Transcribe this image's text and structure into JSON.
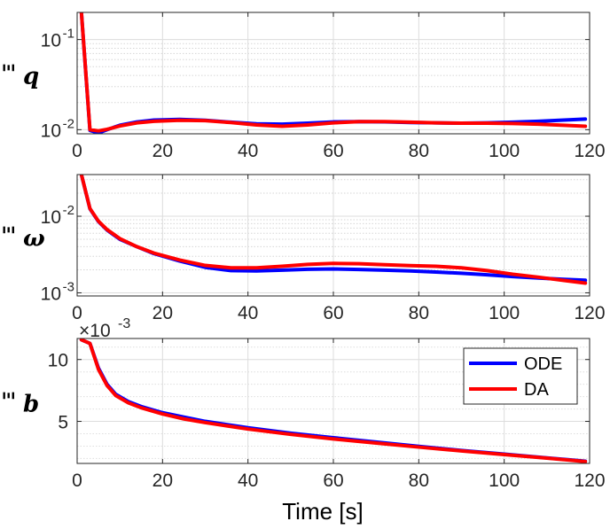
{
  "chart_data": [
    {
      "type": "line",
      "id": "q",
      "yscale": "log",
      "ylabel_symbol": "Ξ",
      "ylabel_sub": "q",
      "xlim": [
        0,
        120
      ],
      "ylim": [
        0.009,
        0.2
      ],
      "xticks": [
        0,
        20,
        40,
        60,
        80,
        100,
        120
      ],
      "xtick_labels": [
        "0",
        "20",
        "40",
        "60",
        "80",
        "100",
        "120"
      ],
      "yticks": [
        0.01,
        0.1
      ],
      "ytick_base": [
        "10",
        "10"
      ],
      "ytick_exp": [
        "-2",
        "-1"
      ],
      "series": [
        {
          "name": "ODE",
          "color": "#0000ff",
          "x": [
            1,
            3,
            5,
            7,
            10,
            14,
            18,
            24,
            30,
            36,
            42,
            48,
            54,
            60,
            66,
            72,
            78,
            84,
            90,
            96,
            102,
            108,
            114,
            119
          ],
          "y": [
            0.2,
            0.0098,
            0.0092,
            0.01,
            0.0112,
            0.0122,
            0.0128,
            0.013,
            0.0127,
            0.0121,
            0.0116,
            0.0115,
            0.0118,
            0.0122,
            0.0123,
            0.0122,
            0.012,
            0.0119,
            0.0118,
            0.0119,
            0.0121,
            0.0124,
            0.0128,
            0.0131
          ]
        },
        {
          "name": "DA",
          "color": "#ff0000",
          "x": [
            1,
            3,
            5,
            7,
            10,
            14,
            18,
            24,
            30,
            36,
            42,
            48,
            54,
            60,
            66,
            72,
            78,
            84,
            90,
            96,
            102,
            108,
            114,
            119
          ],
          "y": [
            0.2,
            0.01,
            0.0097,
            0.0101,
            0.011,
            0.0119,
            0.0124,
            0.0127,
            0.0126,
            0.012,
            0.0113,
            0.0109,
            0.0113,
            0.0119,
            0.0123,
            0.0123,
            0.0121,
            0.0119,
            0.0118,
            0.0118,
            0.0117,
            0.0115,
            0.0112,
            0.0109
          ]
        }
      ]
    },
    {
      "type": "line",
      "id": "omega",
      "yscale": "log",
      "ylabel_symbol": "Ξ",
      "ylabel_sub": "ω",
      "xlim": [
        0,
        120
      ],
      "ylim": [
        0.00091,
        0.035
      ],
      "xticks": [
        0,
        20,
        40,
        60,
        80,
        100,
        120
      ],
      "xtick_labels": [
        "0",
        "20",
        "40",
        "60",
        "80",
        "100",
        "120"
      ],
      "yticks": [
        0.001,
        0.01
      ],
      "ytick_base": [
        "10",
        "10"
      ],
      "ytick_exp": [
        "-3",
        "-2"
      ],
      "series": [
        {
          "name": "ODE",
          "color": "#0000ff",
          "x": [
            1,
            3,
            5,
            7,
            10,
            14,
            18,
            24,
            30,
            36,
            42,
            48,
            54,
            60,
            66,
            72,
            78,
            84,
            90,
            96,
            102,
            108,
            114,
            119
          ],
          "y": [
            0.035,
            0.0125,
            0.0085,
            0.0066,
            0.005,
            0.004,
            0.00325,
            0.0026,
            0.00215,
            0.00195,
            0.00193,
            0.00198,
            0.00203,
            0.00205,
            0.00202,
            0.00198,
            0.00193,
            0.00187,
            0.0018,
            0.00172,
            0.00163,
            0.00156,
            0.0015,
            0.00146
          ]
        },
        {
          "name": "DA",
          "color": "#ff0000",
          "x": [
            1,
            3,
            5,
            7,
            10,
            14,
            18,
            24,
            30,
            36,
            42,
            48,
            54,
            60,
            66,
            72,
            78,
            84,
            90,
            96,
            102,
            108,
            114,
            119
          ],
          "y": [
            0.035,
            0.0126,
            0.0086,
            0.0067,
            0.0051,
            0.004,
            0.0033,
            0.00268,
            0.00228,
            0.00212,
            0.00212,
            0.00222,
            0.00235,
            0.00242,
            0.0024,
            0.00233,
            0.00227,
            0.00222,
            0.00212,
            0.00195,
            0.00175,
            0.0016,
            0.00145,
            0.00134
          ]
        }
      ]
    },
    {
      "type": "line",
      "id": "b",
      "yscale": "linear",
      "ylabel_symbol": "Ξ",
      "ylabel_sub": "b",
      "exponent_label_base": "×10",
      "exponent_label_exp": "-3",
      "xlim": [
        0,
        120
      ],
      "ylim": [
        0.0016,
        0.0117
      ],
      "xticks": [
        0,
        20,
        40,
        60,
        80,
        100,
        120
      ],
      "xtick_labels": [
        "0",
        "20",
        "40",
        "60",
        "80",
        "100",
        "120"
      ],
      "yticks": [
        0.005,
        0.01
      ],
      "ytick_labels": [
        "5",
        "10"
      ],
      "xlabel": "Time [s]",
      "series": [
        {
          "name": "ODE",
          "color": "#0000ff",
          "x": [
            1,
            3,
            5,
            7,
            9,
            12,
            15,
            20,
            25,
            30,
            40,
            50,
            60,
            70,
            80,
            90,
            100,
            110,
            119
          ],
          "y": [
            0.0116,
            0.0113,
            0.0093,
            0.008,
            0.0072,
            0.0066,
            0.0062,
            0.0057,
            0.00535,
            0.005,
            0.00448,
            0.00405,
            0.00368,
            0.00333,
            0.00298,
            0.00265,
            0.00235,
            0.00205,
            0.00178
          ]
        },
        {
          "name": "DA",
          "color": "#ff0000",
          "x": [
            1,
            3,
            5,
            7,
            9,
            12,
            15,
            20,
            25,
            30,
            40,
            50,
            60,
            70,
            80,
            90,
            100,
            110,
            119
          ],
          "y": [
            0.0116,
            0.0113,
            0.0092,
            0.0079,
            0.0071,
            0.0065,
            0.0061,
            0.0056,
            0.0052,
            0.0049,
            0.00438,
            0.00395,
            0.00358,
            0.00325,
            0.00292,
            0.00261,
            0.00232,
            0.00203,
            0.00175
          ]
        }
      ],
      "legend": {
        "placement": "top-right",
        "entries": [
          {
            "label": "ODE",
            "color": "#0000ff"
          },
          {
            "label": "DA",
            "color": "#ff0000"
          }
        ]
      }
    }
  ]
}
